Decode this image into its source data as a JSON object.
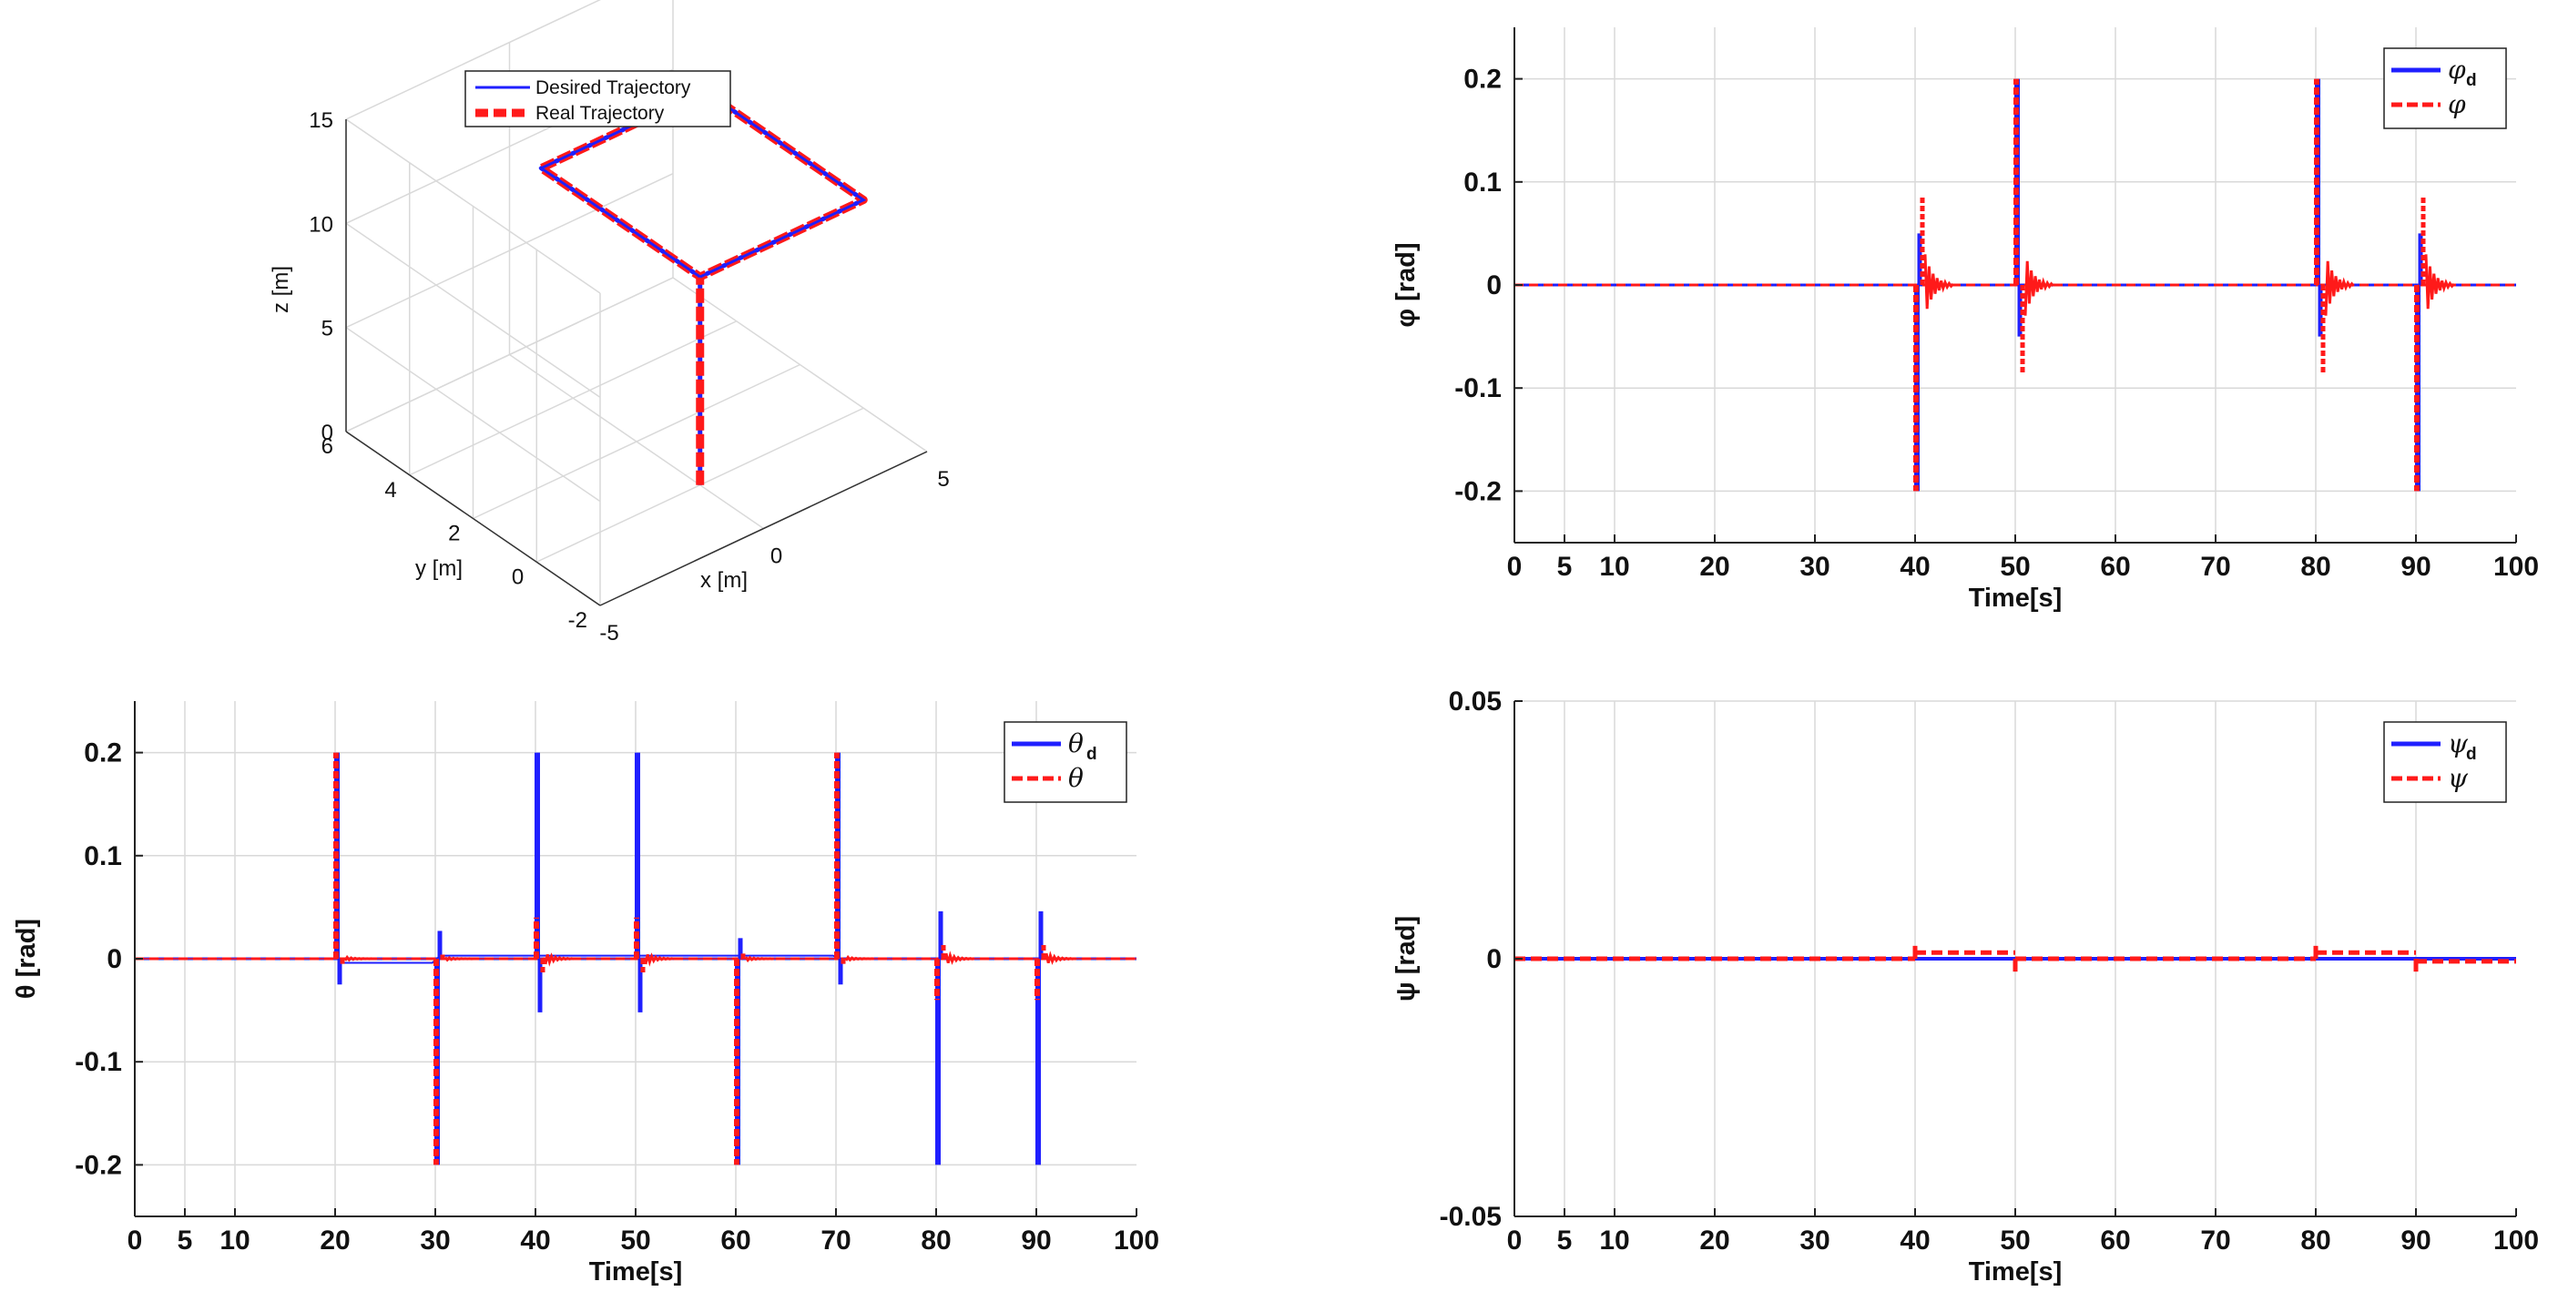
{
  "chart_data": [
    {
      "id": "traj3d",
      "type": "line3d",
      "xlabel": "x [m]",
      "ylabel": "y [m]",
      "zlabel": "z [m]",
      "xlim": [
        -5,
        5
      ],
      "ylim": [
        -2,
        6
      ],
      "zlim": [
        0,
        15
      ],
      "xticks": [
        "-5",
        "0",
        "5"
      ],
      "yticks": [
        "-2",
        "0",
        "2",
        "4",
        "6"
      ],
      "zticks": [
        "0",
        "5",
        "10",
        "15"
      ],
      "legend": [
        "Desired Trajectory",
        "Real Trajectory"
      ],
      "series": [
        {
          "name": "Desired Trajectory",
          "color": "#1f1fff",
          "points": [
            [
              0,
              0,
              0
            ],
            [
              0,
              0,
              10
            ],
            [
              5,
              0,
              10
            ],
            [
              5,
              5,
              10
            ],
            [
              0,
              5,
              10
            ],
            [
              0,
              0,
              10
            ]
          ]
        },
        {
          "name": "Real Trajectory",
          "color": "#ff1a1a",
          "points": [
            [
              0,
              0,
              0
            ],
            [
              0,
              0,
              10
            ],
            [
              5,
              0,
              10
            ],
            [
              5,
              5,
              10
            ],
            [
              0,
              5,
              10
            ],
            [
              0,
              0,
              10
            ]
          ]
        }
      ]
    },
    {
      "id": "phi",
      "type": "line",
      "xlabel": "Time[s]",
      "ylabel": "φ [rad]",
      "xlim": [
        0,
        100
      ],
      "ylim": [
        -0.25,
        0.25
      ],
      "xticks": [
        "0",
        "5",
        "10",
        "20",
        "30",
        "40",
        "50",
        "60",
        "70",
        "80",
        "90",
        "100"
      ],
      "yticks": [
        "-0.2",
        "-0.1",
        "0",
        "0.1",
        "0.2"
      ],
      "legend": [
        {
          "sym": "φ",
          "sub": "d"
        },
        {
          "sym": "φ",
          "sub": ""
        }
      ],
      "events": [
        {
          "t": 40,
          "d": [
            -0.2,
            0.05
          ],
          "r": [
            -0.2,
            0.085
          ]
        },
        {
          "t": 50,
          "d": [
            0.2,
            -0.05
          ],
          "r": [
            0.2,
            -0.085
          ]
        },
        {
          "t": 80,
          "d": [
            0.2,
            -0.05
          ],
          "r": [
            0.2,
            -0.085
          ]
        },
        {
          "t": 90,
          "d": [
            -0.2,
            0.05
          ],
          "r": [
            -0.2,
            0.085
          ]
        }
      ]
    },
    {
      "id": "theta",
      "type": "line",
      "xlabel": "Time[s]",
      "ylabel": "θ [rad]",
      "xlim": [
        0,
        100
      ],
      "ylim": [
        -0.25,
        0.25
      ],
      "xticks": [
        "0",
        "5",
        "10",
        "20",
        "30",
        "40",
        "50",
        "60",
        "70",
        "80",
        "90",
        "100"
      ],
      "yticks": [
        "-0.2",
        "-0.1",
        "0",
        "0.1",
        "0.2"
      ],
      "legend": [
        {
          "sym": "θ",
          "sub": "d"
        },
        {
          "sym": "θ",
          "sub": ""
        }
      ],
      "events": [
        {
          "t": 20,
          "d": [
            0.2,
            -0.025
          ],
          "r": [
            0.2,
            -0.005
          ]
        },
        {
          "t": 30,
          "d": [
            -0.2,
            0.027
          ],
          "r": [
            -0.2,
            0.004
          ]
        },
        {
          "t": 40,
          "d": [
            0.2,
            -0.052
          ],
          "r": [
            0.04,
            -0.015
          ]
        },
        {
          "t": 50,
          "d": [
            0.2,
            -0.052
          ],
          "r": [
            0.04,
            -0.015
          ]
        },
        {
          "t": 60,
          "d": [
            -0.2,
            0.02
          ],
          "r": [
            -0.2,
            0.005
          ]
        },
        {
          "t": 70,
          "d": [
            0.2,
            -0.025
          ],
          "r": [
            0.2,
            -0.005
          ]
        },
        {
          "t": 80,
          "d": [
            -0.2,
            0.046
          ],
          "r": [
            -0.04,
            0.015
          ]
        },
        {
          "t": 90,
          "d": [
            -0.2,
            0.046
          ],
          "r": [
            -0.04,
            0.015
          ]
        }
      ]
    },
    {
      "id": "psi",
      "type": "line",
      "xlabel": "Time[s]",
      "ylabel": "ψ [rad]",
      "xlim": [
        0,
        100
      ],
      "ylim": [
        -0.05,
        0.05
      ],
      "xticks": [
        "0",
        "5",
        "10",
        "20",
        "30",
        "40",
        "50",
        "60",
        "70",
        "80",
        "90",
        "100"
      ],
      "yticks": [
        "-0.05",
        "0",
        "0.05"
      ],
      "legend": [
        {
          "sym": "ψ",
          "sub": "d"
        },
        {
          "sym": "ψ",
          "sub": ""
        }
      ],
      "steps": [
        {
          "t": 40,
          "v": 0.0012,
          "spike": 0.0025
        },
        {
          "t": 50,
          "v": 0.0,
          "spike": -0.0025
        },
        {
          "t": 80,
          "v": 0.0012,
          "spike": 0.0025
        },
        {
          "t": 90,
          "v": -0.0005,
          "spike": -0.0025
        }
      ]
    }
  ]
}
